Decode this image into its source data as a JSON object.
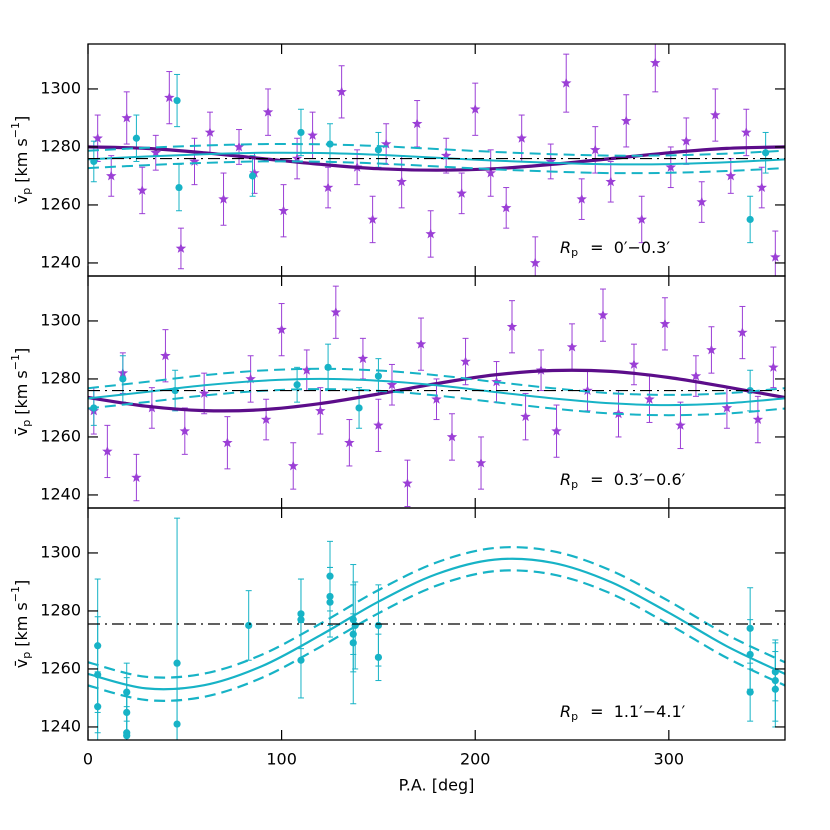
{
  "chart_data": [
    {
      "type": "scatter",
      "xlim": [
        0,
        360
      ],
      "ylim": [
        1235.5,
        1315.5
      ],
      "xticks": [
        0,
        100,
        200,
        300
      ],
      "yticks": [
        1240,
        1260,
        1280,
        1300
      ],
      "xtick_labels": false,
      "ylabel": {
        "symbol": "v̄",
        "subscript": "p",
        "text": "[km s",
        "superscript": "−1",
        "close": "]"
      },
      "annotation": {
        "symbol": "R",
        "subscript": "p",
        "text": "=  0′−0.3′"
      },
      "series": [
        {
          "color": "#9b3fd6",
          "marker": "star",
          "x": [
            5,
            12,
            20,
            28,
            35,
            42,
            48,
            55,
            63,
            70,
            78,
            86,
            93,
            101,
            108,
            116,
            124,
            131,
            139,
            147,
            154,
            162,
            170,
            177,
            185,
            193,
            200,
            208,
            216,
            224,
            231,
            239,
            247,
            255,
            262,
            270,
            278,
            286,
            293,
            301,
            309,
            317,
            324,
            332,
            340,
            348,
            355
          ],
          "values": [
            1283,
            1270,
            1290,
            1265,
            1278,
            1297,
            1245,
            1275,
            1285,
            1262,
            1280,
            1271,
            1292,
            1258,
            1276,
            1284,
            1266,
            1299,
            1273,
            1255,
            1281,
            1268,
            1288,
            1250,
            1277,
            1264,
            1293,
            1271,
            1259,
            1283,
            1240,
            1275,
            1302,
            1262,
            1279,
            1268,
            1289,
            1255,
            1309,
            1273,
            1282,
            1261,
            1291,
            1270,
            1285,
            1266,
            1242
          ],
          "errors": [
            8,
            7,
            9,
            8,
            6,
            9,
            7,
            8,
            7,
            9,
            6,
            7,
            8,
            9,
            7,
            8,
            7,
            9,
            6,
            8,
            7,
            9,
            8,
            8,
            6,
            7,
            9,
            8,
            7,
            8,
            9,
            6,
            10,
            7,
            8,
            7,
            9,
            8,
            10,
            7,
            8,
            7,
            9,
            6,
            8,
            7,
            9
          ]
        },
        {
          "color": "#17b3c6",
          "marker": "circle",
          "x": [
            3,
            25,
            46,
            47,
            85,
            110,
            125,
            150,
            342,
            350
          ],
          "values": [
            1275,
            1283,
            1296,
            1266,
            1270,
            1285,
            1281,
            1279,
            1255,
            1278
          ],
          "errors": [
            7,
            8,
            9,
            8,
            7,
            8,
            7,
            6,
            8,
            7
          ]
        }
      ],
      "curve_x": [
        0,
        30,
        60,
        90,
        120,
        150,
        180,
        210,
        240,
        270,
        300,
        330,
        360
      ],
      "curves": [
        {
          "color": "#5c0d8a",
          "style": "solid",
          "width": 3.2,
          "values": [
            1280,
            1279.5,
            1278,
            1276,
            1274,
            1272.5,
            1272,
            1272.5,
            1274,
            1276,
            1278,
            1279.5,
            1280
          ]
        },
        {
          "color": "#17b3c6",
          "style": "solid",
          "width": 2,
          "values": [
            1275.7,
            1276.7,
            1277.5,
            1278.0,
            1277.9,
            1277.3,
            1276.3,
            1275.3,
            1274.5,
            1274.0,
            1274.1,
            1274.7,
            1275.7
          ]
        },
        {
          "color": "#17b3c6",
          "style": "dashed",
          "width": 2,
          "values": [
            1278.7,
            1279.7,
            1280.5,
            1281.0,
            1280.9,
            1280.3,
            1279.3,
            1278.3,
            1277.5,
            1277.0,
            1277.1,
            1277.7,
            1278.7
          ]
        },
        {
          "color": "#17b3c6",
          "style": "dashed",
          "width": 2,
          "values": [
            1272.7,
            1273.7,
            1274.5,
            1275.0,
            1274.9,
            1274.3,
            1273.3,
            1272.3,
            1271.5,
            1271.0,
            1271.1,
            1271.7,
            1272.7
          ]
        }
      ],
      "hline": {
        "value": 1276,
        "color": "#000000",
        "style": "dashdot"
      }
    },
    {
      "type": "scatter",
      "xlim": [
        0,
        360
      ],
      "ylim": [
        1235.5,
        1315.5
      ],
      "xticks": [
        0,
        100,
        200,
        300
      ],
      "yticks": [
        1240,
        1260,
        1280,
        1300
      ],
      "xtick_labels": false,
      "ylabel": {
        "symbol": "v̄",
        "subscript": "p",
        "text": "[km s",
        "superscript": "−1",
        "close": "]"
      },
      "annotation": {
        "symbol": "R",
        "subscript": "p",
        "text": "=  0.3′−0.6′"
      },
      "series": [
        {
          "color": "#9b3fd6",
          "marker": "star",
          "x": [
            3,
            10,
            18,
            25,
            33,
            40,
            50,
            60,
            72,
            84,
            92,
            100,
            106,
            113,
            120,
            128,
            135,
            142,
            150,
            157,
            165,
            172,
            180,
            188,
            195,
            203,
            211,
            219,
            226,
            234,
            242,
            250,
            258,
            266,
            274,
            282,
            290,
            298,
            306,
            314,
            322,
            330,
            338,
            346,
            354
          ],
          "values": [
            1269,
            1255,
            1282,
            1246,
            1270,
            1288,
            1262,
            1275,
            1258,
            1280,
            1266,
            1297,
            1250,
            1283,
            1269,
            1303,
            1258,
            1287,
            1264,
            1278,
            1244,
            1292,
            1273,
            1260,
            1286,
            1251,
            1279,
            1298,
            1267,
            1283,
            1262,
            1291,
            1276,
            1302,
            1268,
            1285,
            1273,
            1299,
            1264,
            1281,
            1290,
            1270,
            1296,
            1266,
            1284
          ],
          "errors": [
            8,
            9,
            7,
            8,
            7,
            9,
            8,
            7,
            9,
            8,
            7,
            9,
            8,
            7,
            8,
            9,
            8,
            7,
            9,
            7,
            8,
            9,
            7,
            8,
            8,
            9,
            7,
            9,
            8,
            7,
            9,
            8,
            7,
            9,
            8,
            7,
            8,
            9,
            8,
            7,
            8,
            7,
            9,
            8,
            7
          ]
        },
        {
          "color": "#17b3c6",
          "marker": "circle",
          "x": [
            3,
            18,
            45,
            108,
            124,
            140,
            150,
            342
          ],
          "values": [
            1270,
            1280,
            1276,
            1278,
            1284,
            1270,
            1281,
            1276
          ],
          "errors": [
            6,
            8,
            7,
            6,
            8,
            7,
            6,
            7
          ]
        }
      ],
      "curve_x": [
        0,
        30,
        60,
        90,
        120,
        150,
        180,
        210,
        240,
        270,
        300,
        330,
        360
      ],
      "curves": [
        {
          "color": "#5c0d8a",
          "style": "solid",
          "width": 3.2,
          "values": [
            1273.6,
            1270.6,
            1269.1,
            1269.4,
            1271.5,
            1274.8,
            1278.4,
            1281.4,
            1282.9,
            1282.6,
            1280.5,
            1277.2,
            1273.6
          ]
        },
        {
          "color": "#17b3c6",
          "style": "solid",
          "width": 2,
          "values": [
            1273.3,
            1275.5,
            1277.8,
            1279.4,
            1280,
            1279.4,
            1277.8,
            1275.5,
            1273.3,
            1271.6,
            1271,
            1271.6,
            1273.3
          ]
        },
        {
          "color": "#17b3c6",
          "style": "dashed",
          "width": 2,
          "values": [
            1276.8,
            1279,
            1281.3,
            1282.9,
            1283.5,
            1282.9,
            1281.3,
            1279,
            1276.8,
            1275.1,
            1274.5,
            1275.1,
            1276.8
          ]
        },
        {
          "color": "#17b3c6",
          "style": "dashed",
          "width": 2,
          "values": [
            1269.8,
            1272,
            1274.3,
            1275.9,
            1276.5,
            1275.9,
            1274.3,
            1272,
            1269.8,
            1268.1,
            1267.5,
            1268.1,
            1269.8
          ]
        }
      ],
      "hline": {
        "value": 1276,
        "color": "#000000",
        "style": "dashdot"
      }
    },
    {
      "type": "scatter",
      "xlim": [
        0,
        360
      ],
      "ylim": [
        1235.5,
        1315.5
      ],
      "xticks": [
        0,
        100,
        200,
        300
      ],
      "yticks": [
        1240,
        1260,
        1280,
        1300
      ],
      "xtick_labels": true,
      "xlabel": "P.A. [deg]",
      "ylabel": {
        "symbol": "v̄",
        "subscript": "p",
        "text": "[km s",
        "superscript": "−1",
        "close": "]"
      },
      "annotation": {
        "symbol": "R",
        "subscript": "p",
        "text": "=  1.1′−4.1′"
      },
      "series": [
        {
          "color": "#17b3c6",
          "marker": "circle",
          "x": [
            5,
            5,
            5,
            20,
            20,
            20,
            20,
            46,
            46,
            83,
            110,
            110,
            110,
            125,
            125,
            125,
            137,
            137,
            137,
            138,
            150,
            150,
            342,
            342,
            342,
            355,
            355,
            355
          ],
          "values": [
            1268,
            1247,
            1258,
            1252,
            1245,
            1238,
            1237,
            1262,
            1241,
            1275,
            1279,
            1277,
            1263,
            1292,
            1285,
            1283,
            1277,
            1272,
            1269,
            1275,
            1275,
            1264,
            1274,
            1252,
            1265,
            1256,
            1253,
            1259
          ],
          "errors": [
            23,
            12,
            20,
            10,
            12,
            14,
            10,
            50,
            12,
            12,
            12,
            14,
            13,
            12,
            10,
            12,
            12,
            24,
            10,
            15,
            14,
            8,
            14,
            10,
            12,
            14,
            13,
            10
          ]
        }
      ],
      "curve_x": [
        0,
        30,
        60,
        90,
        120,
        150,
        180,
        210,
        240,
        270,
        300,
        330,
        360
      ],
      "curves": [
        {
          "color": "#17b3c6",
          "style": "solid",
          "width": 2.2,
          "values": [
            1258.3,
            1253.3,
            1254.4,
            1261,
            1271.6,
            1283.2,
            1292.7,
            1297.7,
            1296.6,
            1290,
            1279.4,
            1267.8,
            1258.3
          ]
        },
        {
          "color": "#17b3c6",
          "style": "dashed",
          "width": 2.2,
          "values": [
            1262.3,
            1257.3,
            1258.4,
            1265,
            1275.6,
            1287.2,
            1296.7,
            1301.7,
            1300.6,
            1294,
            1283.4,
            1271.8,
            1262.3
          ]
        },
        {
          "color": "#17b3c6",
          "style": "dashed",
          "width": 2.2,
          "values": [
            1254.3,
            1249.3,
            1250.4,
            1257,
            1267.6,
            1279.2,
            1288.7,
            1293.7,
            1292.6,
            1286,
            1275.4,
            1263.8,
            1254.3
          ]
        }
      ],
      "hline": {
        "value": 1275.5,
        "color": "#000000",
        "style": "dashdot"
      }
    }
  ]
}
